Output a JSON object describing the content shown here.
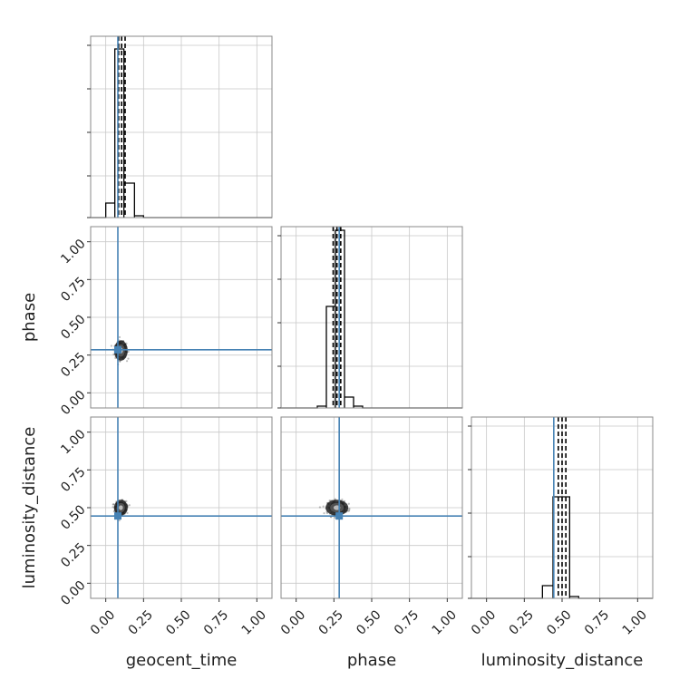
{
  "chart_data": {
    "type": "corner",
    "parameters": [
      "geocent_time",
      "phase",
      "luminosity_distance"
    ],
    "axis_range": [
      -0.1,
      1.1
    ],
    "tick_labels": [
      "0.00",
      "0.25",
      "0.50",
      "0.75",
      "1.00"
    ],
    "tick_values": [
      0,
      0.25,
      0.5,
      0.75,
      1.0
    ],
    "grid": true,
    "truth_color": "#4682b4",
    "truths": {
      "geocent_time": 0.08,
      "phase": 0.285,
      "luminosity_distance": 0.445
    },
    "quantiles": {
      "geocent_time": [
        0.085,
        0.105,
        0.128
      ],
      "phase": [
        0.245,
        0.27,
        0.295
      ],
      "luminosity_distance": [
        0.475,
        0.5,
        0.525
      ]
    },
    "histograms": {
      "geocent_time": {
        "edges": [
          0.0,
          0.06,
          0.12,
          0.19,
          0.25
        ],
        "counts": [
          0.08,
          0.93,
          0.19,
          0.01
        ]
      },
      "phase": {
        "edges": [
          0.14,
          0.2,
          0.26,
          0.32,
          0.38,
          0.44
        ],
        "counts": [
          0.01,
          0.56,
          0.98,
          0.06,
          0.01
        ]
      },
      "luminosity_distance": {
        "edges": [
          0.37,
          0.44,
          0.55,
          0.61
        ],
        "counts": [
          0.07,
          0.56,
          0.01
        ]
      }
    },
    "scatter_clouds": [
      {
        "x_param": "geocent_time",
        "y_param": "phase",
        "center": [
          0.1,
          0.28
        ],
        "spread": [
          0.03,
          0.045
        ]
      },
      {
        "x_param": "geocent_time",
        "y_param": "luminosity_distance",
        "center": [
          0.1,
          0.5
        ],
        "spread": [
          0.03,
          0.035
        ]
      },
      {
        "x_param": "phase",
        "y_param": "luminosity_distance",
        "center": [
          0.27,
          0.5
        ],
        "spread": [
          0.05,
          0.035
        ]
      }
    ]
  }
}
